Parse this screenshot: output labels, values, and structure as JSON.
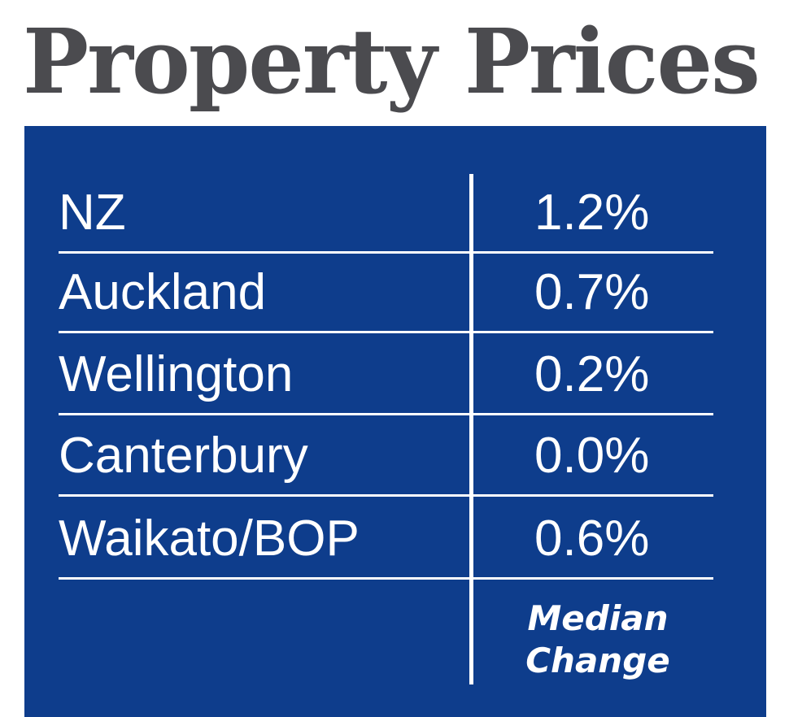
{
  "title": "Property Prices",
  "colors": {
    "title": "#4b4b4f",
    "panel_background": "#0e3d8c",
    "panel_text": "#ffffff"
  },
  "table": {
    "rows": [
      {
        "region": "NZ",
        "change": "1.2%"
      },
      {
        "region": "Auckland",
        "change": "0.7%"
      },
      {
        "region": "Wellington",
        "change": "0.2%"
      },
      {
        "region": "Canterbury",
        "change": "0.0%"
      },
      {
        "region": "Waikato/BOP",
        "change": "0.6%"
      }
    ],
    "value_column_caption_line1": "Median",
    "value_column_caption_line2": "Change"
  }
}
